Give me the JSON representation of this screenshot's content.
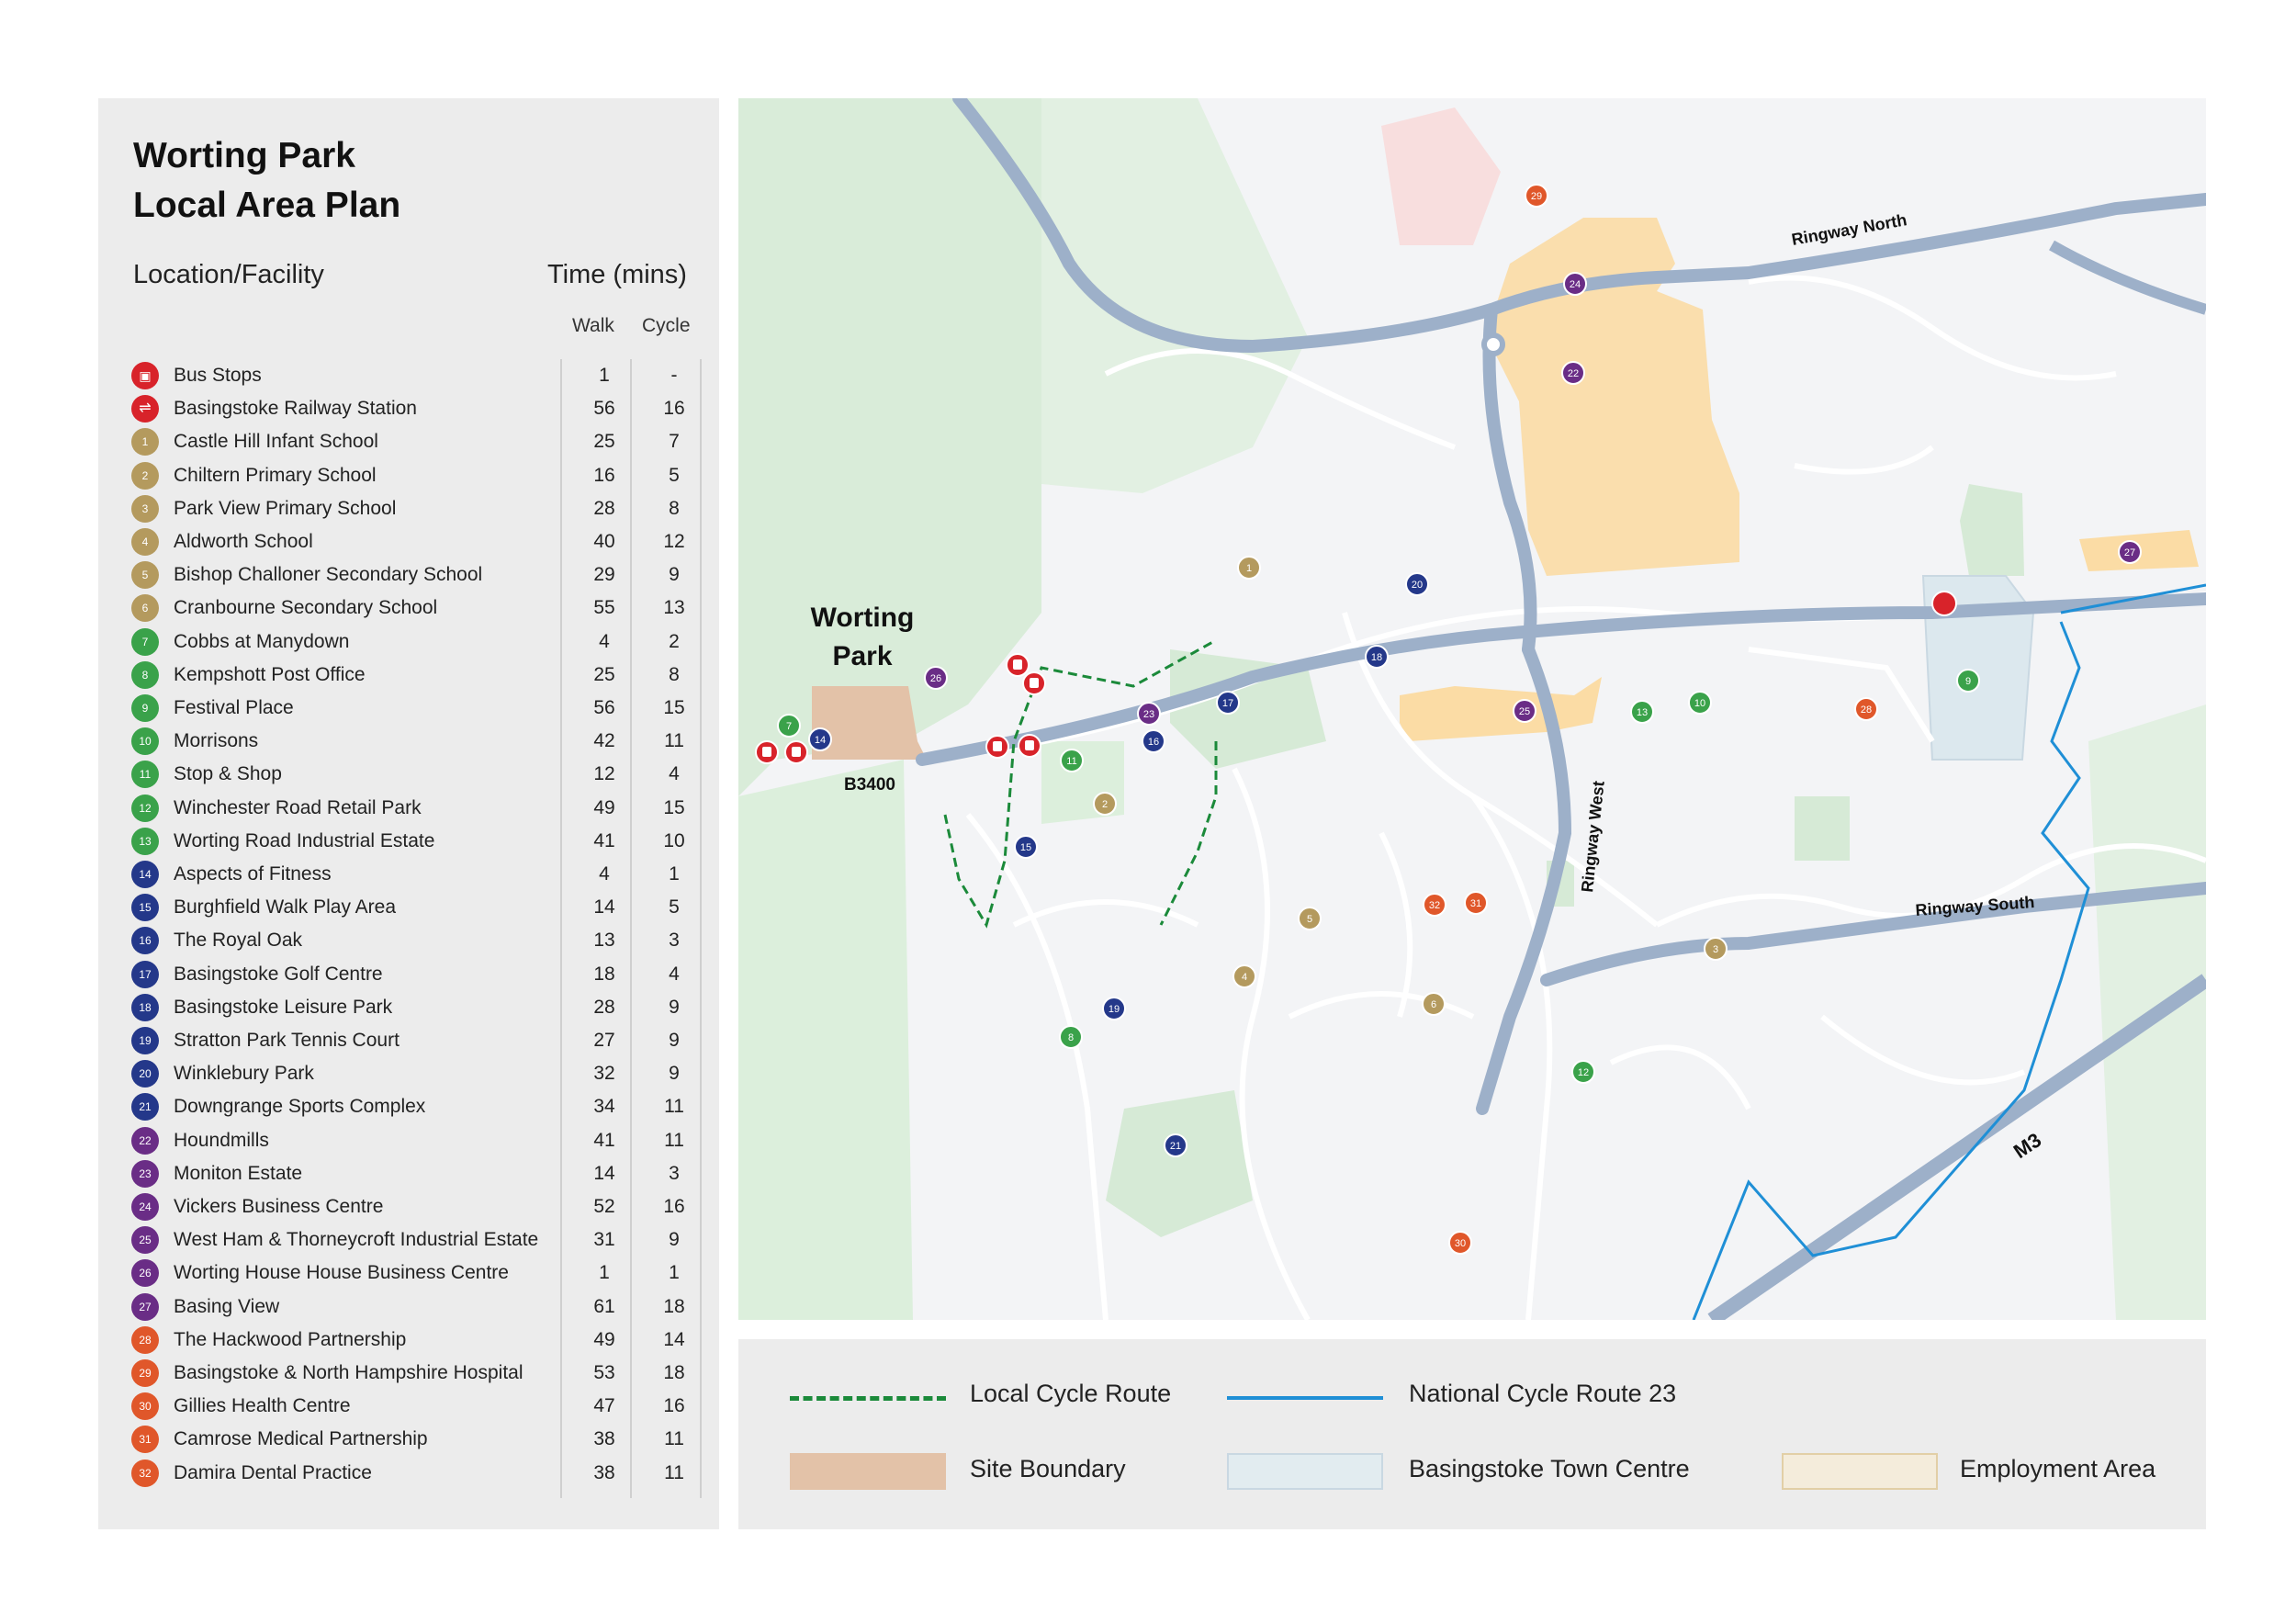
{
  "title_line1": "Worting Park",
  "title_line2": "Local Area Plan",
  "table": {
    "col_location": "Location/Facility",
    "col_time": "Time (mins)",
    "col_walk": "Walk",
    "col_cycle": "Cycle",
    "rows": [
      {
        "badge": "",
        "icon": "bus-icon",
        "name": "Bus Stops",
        "walk": "1",
        "cycle": "-",
        "color": "#d8232a"
      },
      {
        "badge": "",
        "icon": "rail-icon",
        "name": "Basingstoke Railway Station",
        "walk": "56",
        "cycle": "16",
        "color": "#d8232a"
      },
      {
        "badge": "1",
        "name": "Castle Hill Infant School",
        "walk": "25",
        "cycle": "7",
        "color": "#b49a5e"
      },
      {
        "badge": "2",
        "name": "Chiltern Primary School",
        "walk": "16",
        "cycle": "5",
        "color": "#b49a5e"
      },
      {
        "badge": "3",
        "name": "Park View Primary School",
        "walk": "28",
        "cycle": "8",
        "color": "#b49a5e"
      },
      {
        "badge": "4",
        "name": "Aldworth School",
        "walk": "40",
        "cycle": "12",
        "color": "#b49a5e"
      },
      {
        "badge": "5",
        "name": "Bishop Challoner Secondary School",
        "walk": "29",
        "cycle": "9",
        "color": "#b49a5e"
      },
      {
        "badge": "6",
        "name": "Cranbourne Secondary School",
        "walk": "55",
        "cycle": "13",
        "color": "#b49a5e"
      },
      {
        "badge": "7",
        "name": "Cobbs at Manydown",
        "walk": "4",
        "cycle": "2",
        "color": "#3aa24a"
      },
      {
        "badge": "8",
        "name": "Kempshott Post Office",
        "walk": "25",
        "cycle": "8",
        "color": "#3aa24a"
      },
      {
        "badge": "9",
        "name": "Festival Place",
        "walk": "56",
        "cycle": "15",
        "color": "#3aa24a"
      },
      {
        "badge": "10",
        "name": "Morrisons",
        "walk": "42",
        "cycle": "11",
        "color": "#3aa24a"
      },
      {
        "badge": "11",
        "name": "Stop & Shop",
        "walk": "12",
        "cycle": "4",
        "color": "#3aa24a"
      },
      {
        "badge": "12",
        "name": "Winchester Road Retail Park",
        "walk": "49",
        "cycle": "15",
        "color": "#3aa24a"
      },
      {
        "badge": "13",
        "name": "Worting Road Industrial Estate",
        "walk": "41",
        "cycle": "10",
        "color": "#3aa24a"
      },
      {
        "badge": "14",
        "name": "Aspects of Fitness",
        "walk": "4",
        "cycle": "1",
        "color": "#24388a"
      },
      {
        "badge": "15",
        "name": "Burghfield Walk Play Area",
        "walk": "14",
        "cycle": "5",
        "color": "#24388a"
      },
      {
        "badge": "16",
        "name": "The Royal Oak",
        "walk": "13",
        "cycle": "3",
        "color": "#24388a"
      },
      {
        "badge": "17",
        "name": "Basingstoke Golf Centre",
        "walk": "18",
        "cycle": "4",
        "color": "#24388a"
      },
      {
        "badge": "18",
        "name": "Basingstoke Leisure Park",
        "walk": "28",
        "cycle": "9",
        "color": "#24388a"
      },
      {
        "badge": "19",
        "name": "Stratton Park Tennis Court",
        "walk": "27",
        "cycle": "9",
        "color": "#24388a"
      },
      {
        "badge": "20",
        "name": "Winklebury Park",
        "walk": "32",
        "cycle": "9",
        "color": "#24388a"
      },
      {
        "badge": "21",
        "name": "Downgrange Sports Complex",
        "walk": "34",
        "cycle": "11",
        "color": "#24388a"
      },
      {
        "badge": "22",
        "name": "Houndmills",
        "walk": "41",
        "cycle": "11",
        "color": "#6a2d86"
      },
      {
        "badge": "23",
        "name": "Moniton Estate",
        "walk": "14",
        "cycle": "3",
        "color": "#6a2d86"
      },
      {
        "badge": "24",
        "name": "Vickers Business Centre",
        "walk": "52",
        "cycle": "16",
        "color": "#6a2d86"
      },
      {
        "badge": "25",
        "name": "West Ham & Thorneycroft Industrial Estate",
        "walk": "31",
        "cycle": "9",
        "color": "#6a2d86"
      },
      {
        "badge": "26",
        "name": "Worting House House Business Centre",
        "walk": "1",
        "cycle": "1",
        "color": "#6a2d86"
      },
      {
        "badge": "27",
        "name": "Basing View",
        "walk": "61",
        "cycle": "18",
        "color": "#6a2d86"
      },
      {
        "badge": "28",
        "name": "The Hackwood Partnership",
        "walk": "49",
        "cycle": "14",
        "color": "#e0572a"
      },
      {
        "badge": "29",
        "name": "Basingstoke & North Hampshire Hospital",
        "walk": "53",
        "cycle": "18",
        "color": "#e0572a"
      },
      {
        "badge": "30",
        "name": "Gillies Health Centre",
        "walk": "47",
        "cycle": "16",
        "color": "#e0572a"
      },
      {
        "badge": "31",
        "name": "Camrose Medical Partnership",
        "walk": "38",
        "cycle": "11",
        "color": "#e0572a"
      },
      {
        "badge": "32",
        "name": "Damira Dental Practice",
        "walk": "38",
        "cycle": "11",
        "color": "#e0572a"
      }
    ]
  },
  "map": {
    "site_label_1": "Worting",
    "site_label_2": "Park",
    "road_b3400": "B3400",
    "road_ringway_north": "Ringway North",
    "road_ringway_west": "Ringway West",
    "road_ringway_south": "Ringway South",
    "road_m3": "M3"
  },
  "legend": {
    "local_cycle_route": "Local Cycle Route",
    "national_cycle_route": "National Cycle Route 23",
    "site_boundary": "Site Boundary",
    "town_centre": "Basingstoke Town Centre",
    "employment_area": "Employment Area"
  },
  "colors": {
    "schools": "#b49a5e",
    "shops": "#3aa24a",
    "leisure": "#24388a",
    "employment": "#6a2d86",
    "health": "#e0572a",
    "transport": "#d8232a",
    "site_boundary": "#e3c2a8",
    "employment_area": "#fbdca5",
    "town_centre": "#dce8ee",
    "national_cycle": "#1f8fd6",
    "local_cycle": "#1b8a3a"
  }
}
